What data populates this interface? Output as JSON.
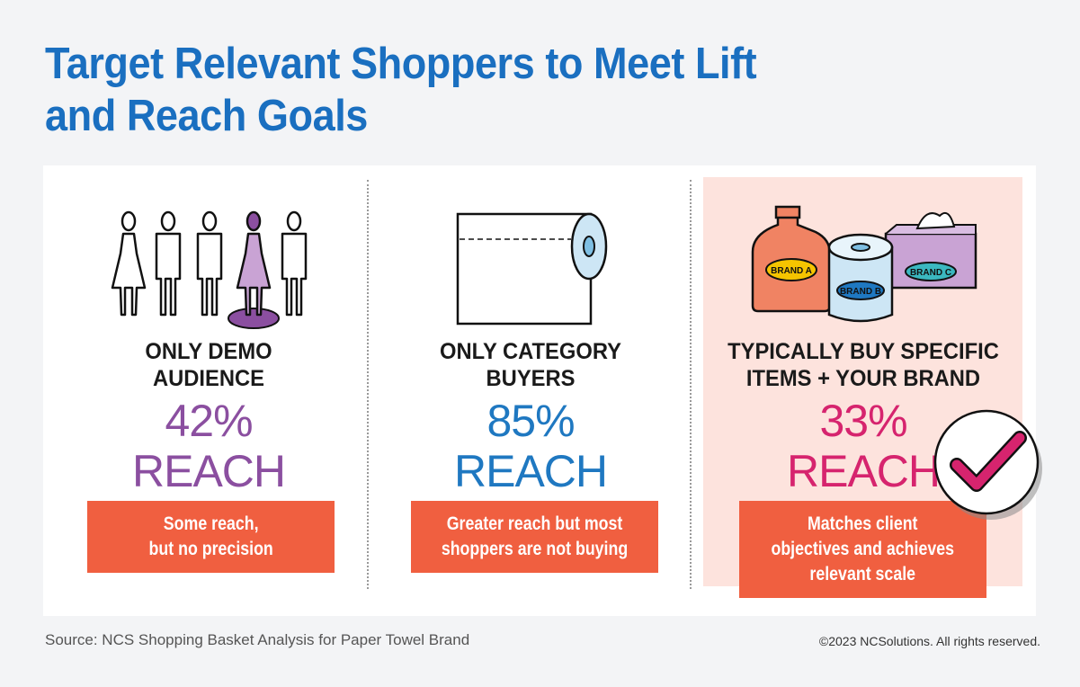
{
  "title_line1": "Target Relevant Shoppers to Meet Lift",
  "title_line2": "and Reach Goals",
  "columns": [
    {
      "heading_line1": "ONLY DEMO",
      "heading_line2": "AUDIENCE",
      "percent": "42%",
      "reach": "REACH",
      "box_line1": "Some reach,",
      "box_line2": "but no precision",
      "color": "#8b4fa0"
    },
    {
      "heading_line1": "ONLY CATEGORY",
      "heading_line2": "BUYERS",
      "percent": "85%",
      "reach": "REACH",
      "box_line1": "Greater reach but most",
      "box_line2": "shoppers are not buying",
      "color": "#1f78c1"
    },
    {
      "heading_line1": "TYPICALLY BUY SPECIFIC",
      "heading_line2": "ITEMS + YOUR BRAND",
      "percent": "33%",
      "reach": "REACH",
      "box_line1": "Matches client",
      "box_line2": "objectives and achieves",
      "box_line3": "relevant scale",
      "color": "#d6246e"
    }
  ],
  "brands": {
    "a": "BRAND A",
    "b": "BRAND B",
    "c": "BRAND C"
  },
  "footer": {
    "source": "Source: NCS Shopping Basket Analysis for Paper Towel Brand",
    "copyright": "©2023 NCSolutions. All rights reserved."
  },
  "colors": {
    "title": "#1a6fc0",
    "box": "#f05f40",
    "highlight": "#fde3dd"
  }
}
